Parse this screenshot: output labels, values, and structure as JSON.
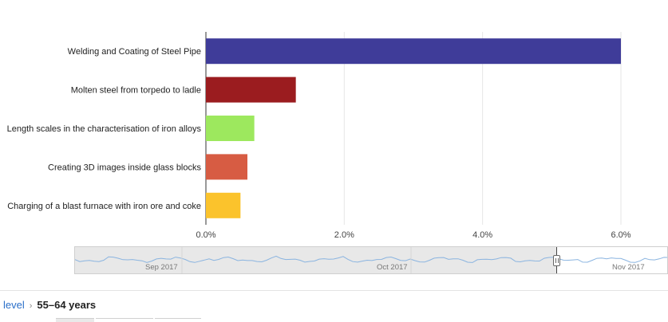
{
  "chart_data": {
    "type": "bar",
    "orientation": "horizontal",
    "categories": [
      "Welding and Coating of Steel Pipe",
      "Molten steel from torpedo to ladle",
      "Length scales in the characterisation of iron alloys",
      "Creating 3D images inside glass blocks",
      "Charging of a blast furnace with iron ore and coke"
    ],
    "values": [
      6.0,
      1.3,
      0.7,
      0.6,
      0.5
    ],
    "colors": [
      "#3f3c99",
      "#9b1c1f",
      "#9de85e",
      "#d75c43",
      "#fbc32c"
    ],
    "xlim": [
      0,
      6.0
    ],
    "xticks": [
      0,
      2,
      4,
      6
    ],
    "xtick_labels": [
      "0.0%",
      "2.0%",
      "4.0%",
      "6.0%"
    ],
    "grid": true
  },
  "range_selector": {
    "months": [
      "Sep 2017",
      "Oct 2017",
      "Nov 2017"
    ],
    "line_color": "#8ab4e0"
  },
  "breadcrumb": {
    "parent": "level",
    "separator": "›",
    "current": "55–64 years"
  }
}
